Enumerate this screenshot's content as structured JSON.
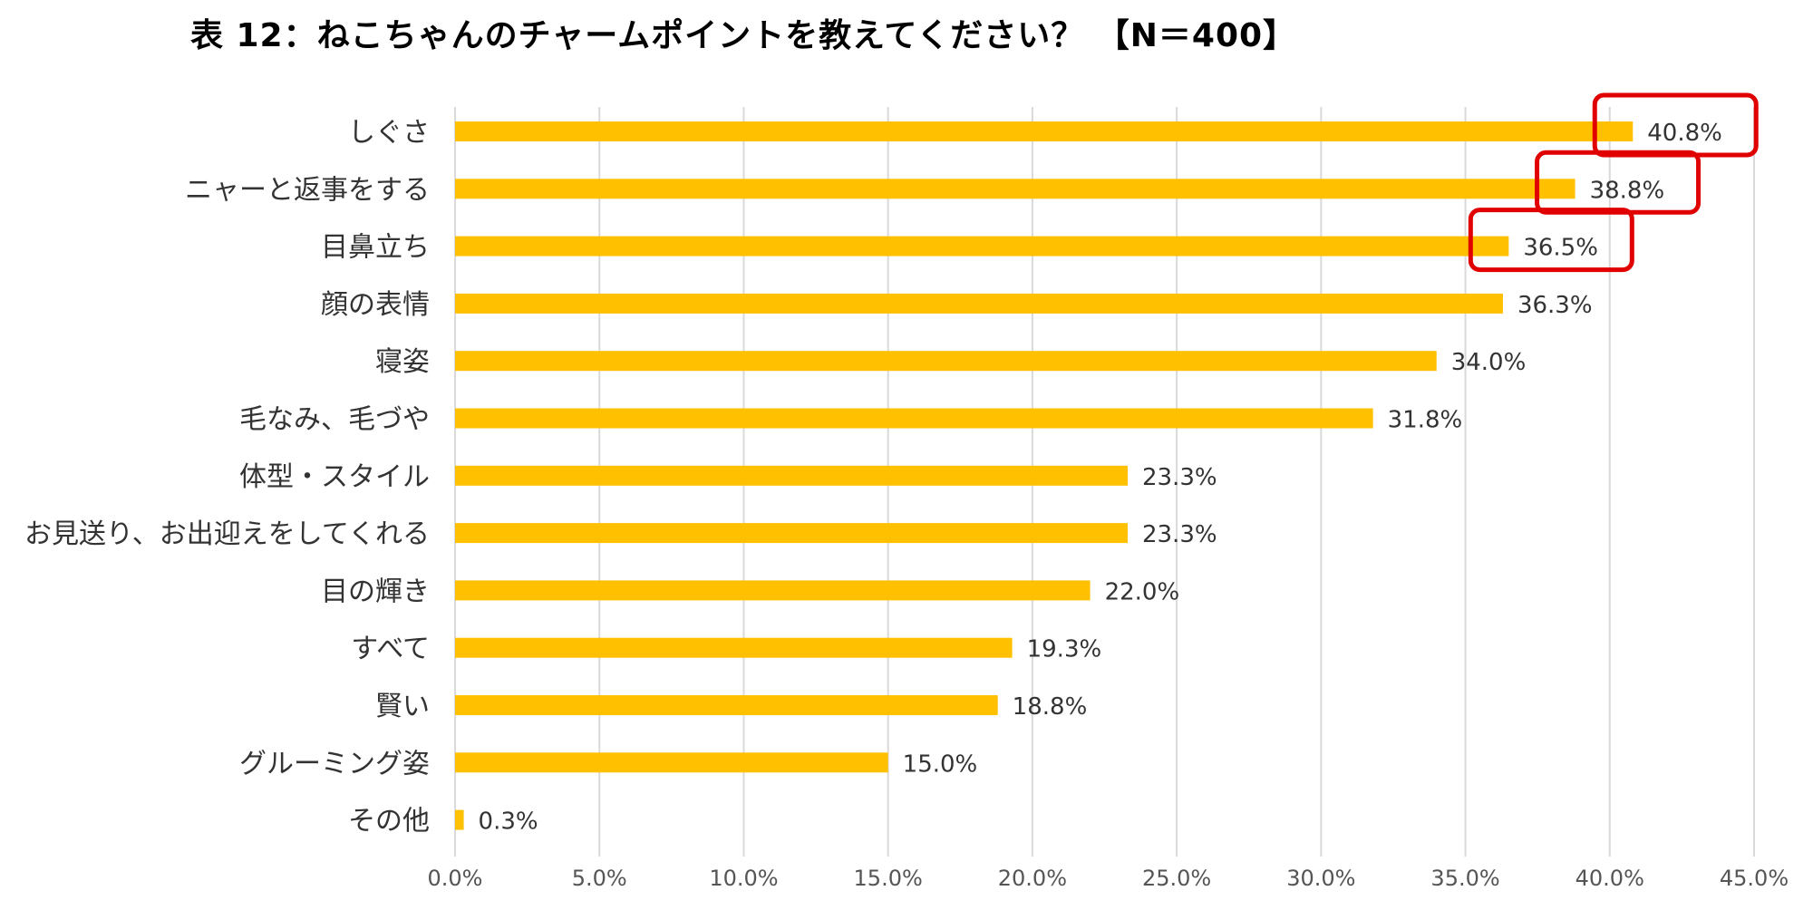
{
  "chart_data": {
    "type": "bar",
    "orientation": "horizontal",
    "title": "表 12：ねこちゃんのチャームポイントを教えてください？ 【N＝400】",
    "categories": [
      "しぐさ",
      "ニャーと返事をする",
      "目鼻立ち",
      "顔の表情",
      "寝姿",
      "毛なみ、毛づや",
      "体型・スタイル",
      "お見送り、お出迎えをしてくれる",
      "目の輝き",
      "すべて",
      "賢い",
      "グルーミング姿",
      "その他"
    ],
    "values": [
      40.8,
      38.8,
      36.5,
      36.3,
      34.0,
      31.8,
      23.3,
      23.3,
      22.0,
      19.3,
      18.8,
      15.0,
      0.3
    ],
    "value_labels": [
      "40.8%",
      "38.8%",
      "36.5%",
      "36.3%",
      "34.0%",
      "31.8%",
      "23.3%",
      "23.3%",
      "22.0%",
      "19.3%",
      "18.8%",
      "15.0%",
      "0.3%"
    ],
    "xlim": [
      0,
      45
    ],
    "xticks": [
      0,
      5,
      10,
      15,
      20,
      25,
      30,
      35,
      40,
      45
    ],
    "xtick_labels": [
      "0.0%",
      "5.0%",
      "10.0%",
      "15.0%",
      "20.0%",
      "25.0%",
      "30.0%",
      "35.0%",
      "40.0%",
      "45.0%"
    ],
    "grid": "vertical",
    "highlighted": [
      0,
      1,
      2
    ],
    "bar_color": "#FFC000",
    "highlight_color": "#E00000"
  }
}
